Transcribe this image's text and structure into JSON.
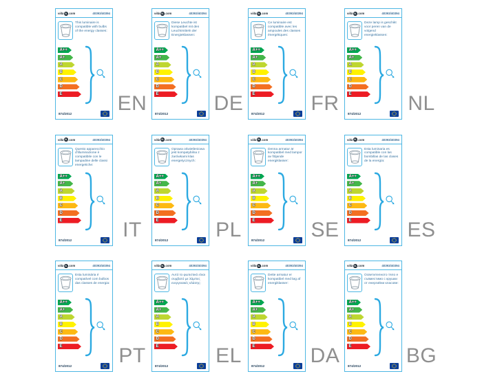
{
  "brand": {
    "prefix": "vida",
    "badge": "XL",
    "suffix": ".com"
  },
  "item_number": "40393/40394",
  "regulation_number": "874/2012",
  "colors": {
    "card_border_blue": "#4cb6e3",
    "accent_blue": "#2ba9e1",
    "text_blue": "#33709f",
    "language_code_gray": "#8f8f8f",
    "eu_flag_blue": "#0b3e99",
    "eu_star_yellow": "#ffd617"
  },
  "energy_classes": [
    {
      "label": "A++",
      "color": "#00a651"
    },
    {
      "label": "A+",
      "color": "#44b649"
    },
    {
      "label": "A",
      "color": "#bed630"
    },
    {
      "label": "B",
      "color": "#fff200"
    },
    {
      "label": "C",
      "color": "#fdb913"
    },
    {
      "label": "D",
      "color": "#f36f21"
    },
    {
      "label": "E",
      "color": "#ed1c24"
    }
  ],
  "cards": [
    {
      "lang": "EN",
      "text": "This luminaire is compatible with bulbs of the energy classes:"
    },
    {
      "lang": "DE",
      "text": "Diese Leuchte ist kompatibel mit den Leuchtmitteln der Energieklassen:"
    },
    {
      "lang": "FR",
      "text": "Ce luminaire est compatible avec les ampoules des classes énergétiques:"
    },
    {
      "lang": "NL",
      "text": "Deze lamp is geschikt voor peren van de volgend energieklassen:"
    },
    {
      "lang": "IT",
      "text": "Questo apparecchio d'illuminazione è compatibile con le lampadine delle classi energetiche:"
    },
    {
      "lang": "PL",
      "text": "Oprawa oświetleniowa jest kompatybilna z żarówkami klas energetycznych:"
    },
    {
      "lang": "SE",
      "text": "Denna armatur är kompatibel med lampor av följande energiklasser:"
    },
    {
      "lang": "ES",
      "text": "Esta luminaria es compatible con las bombillas de las clases de la energía:"
    },
    {
      "lang": "PT",
      "text": "Esta luminária é compatível com bulbos das classes de energia:"
    },
    {
      "lang": "EL",
      "text": "Αυτό το φωτιστικό είναι συμβατό με λάμπες ενεργειακές κλάσης:"
    },
    {
      "lang": "DA",
      "text": "Dette armatur er kompatibel med løg af energiklasser:"
    },
    {
      "lang": "BG",
      "text": "Осветителното тяло е съвместимо с крушки от енергийни класове:"
    }
  ]
}
